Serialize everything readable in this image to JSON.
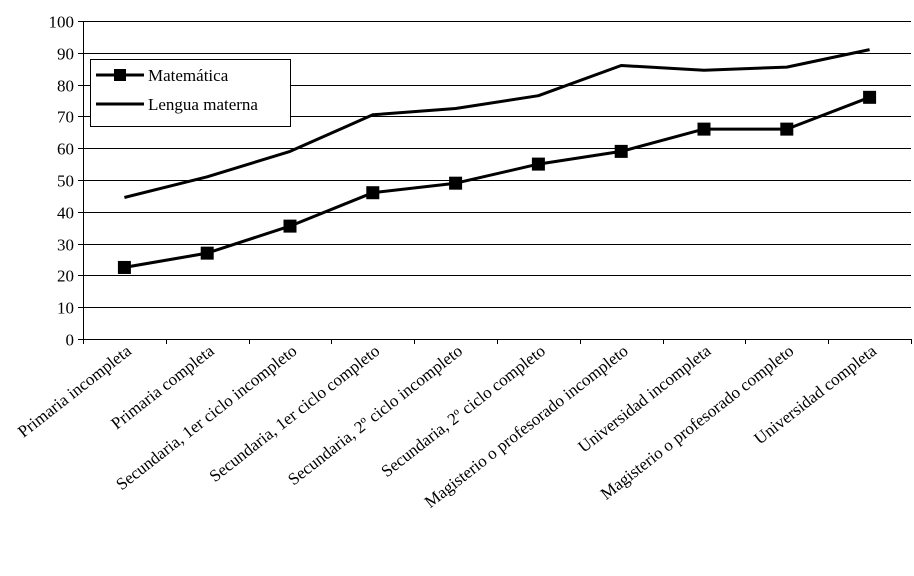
{
  "chart_data": {
    "type": "line",
    "title": "",
    "xlabel": "",
    "ylabel": "",
    "ylim": [
      0,
      100
    ],
    "yticks": [
      0,
      10,
      20,
      30,
      40,
      50,
      60,
      70,
      80,
      90,
      100
    ],
    "grid": "horizontal",
    "legend_position": "top-left",
    "categories": [
      "Primaria incompleta",
      "Primaria completa",
      "Secundaria, 1er ciclo incompleto",
      "Secundaria, 1er ciclo completo",
      "Secundaria, 2º ciclo incompleto",
      "Secundaria, 2º ciclo completo",
      "Magisterio o profesorado incompleto",
      "Universidad incompleta",
      "Magisterio o profesorado completo",
      "Universidad completa"
    ],
    "series": [
      {
        "name": "Matemática",
        "marker": "square",
        "color": "#000000",
        "values": [
          22.5,
          27,
          35.5,
          46,
          49,
          55,
          59,
          66,
          66,
          76
        ]
      },
      {
        "name": "Lengua materna",
        "marker": "none",
        "color": "#000000",
        "values": [
          44.5,
          51,
          59,
          70.5,
          72.5,
          76.5,
          86,
          84.5,
          85.5,
          91
        ]
      }
    ]
  }
}
